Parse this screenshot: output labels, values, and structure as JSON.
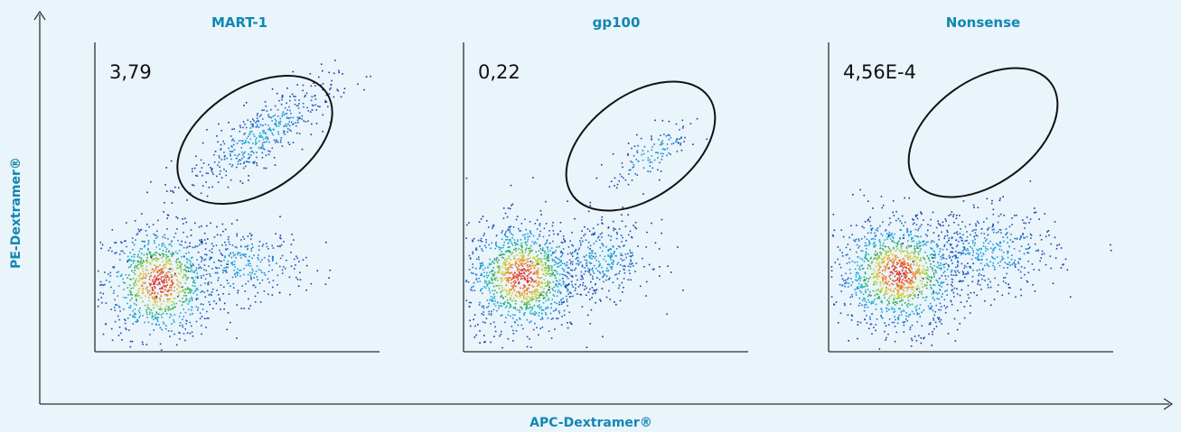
{
  "figure": {
    "x_axis_label": "APC-Dextramer®",
    "y_axis_label": "PE-Dextramer®",
    "colors": {
      "background": "#eaf4fb",
      "accent": "#1187b3",
      "axis": "#2f2f2f",
      "gate": "#111111",
      "density_low": "#1a2a9c",
      "density_mid": "#2ea44f",
      "density_high": "#e4261d"
    }
  },
  "chart_data": [
    {
      "type": "scatter",
      "title": "MART-1",
      "gate_value": "3,79",
      "populations": [
        {
          "name": "",
          "center": [
            0.22,
            0.22
          ],
          "spread": [
            0.1,
            0.09
          ],
          "weight": 0.55
        },
        {
          "name": "",
          "center": [
            0.52,
            0.28
          ],
          "spread": [
            0.11,
            0.06
          ],
          "weight": 0.18
        },
        {
          "name": "",
          "center": [
            0.58,
            0.7
          ],
          "spread": [
            0.13,
            0.05
          ],
          "weight": 0.27
        }
      ]
    },
    {
      "type": "scatter",
      "title": "gp100",
      "gate_value": "0,22",
      "populations": [
        {
          "name": "",
          "center": [
            0.2,
            0.24
          ],
          "spread": [
            0.1,
            0.09
          ],
          "weight": 0.72
        },
        {
          "name": "",
          "center": [
            0.48,
            0.3
          ],
          "spread": [
            0.09,
            0.06
          ],
          "weight": 0.2
        },
        {
          "name": "",
          "center": [
            0.66,
            0.64
          ],
          "spread": [
            0.08,
            0.04
          ],
          "weight": 0.08
        }
      ]
    },
    {
      "type": "scatter",
      "title": "Nonsense",
      "gate_value": "4,56E-4",
      "populations": [
        {
          "name": "",
          "center": [
            0.24,
            0.25
          ],
          "spread": [
            0.11,
            0.09
          ],
          "weight": 0.74
        },
        {
          "name": "",
          "center": [
            0.56,
            0.32
          ],
          "spread": [
            0.12,
            0.07
          ],
          "weight": 0.26
        }
      ]
    }
  ]
}
